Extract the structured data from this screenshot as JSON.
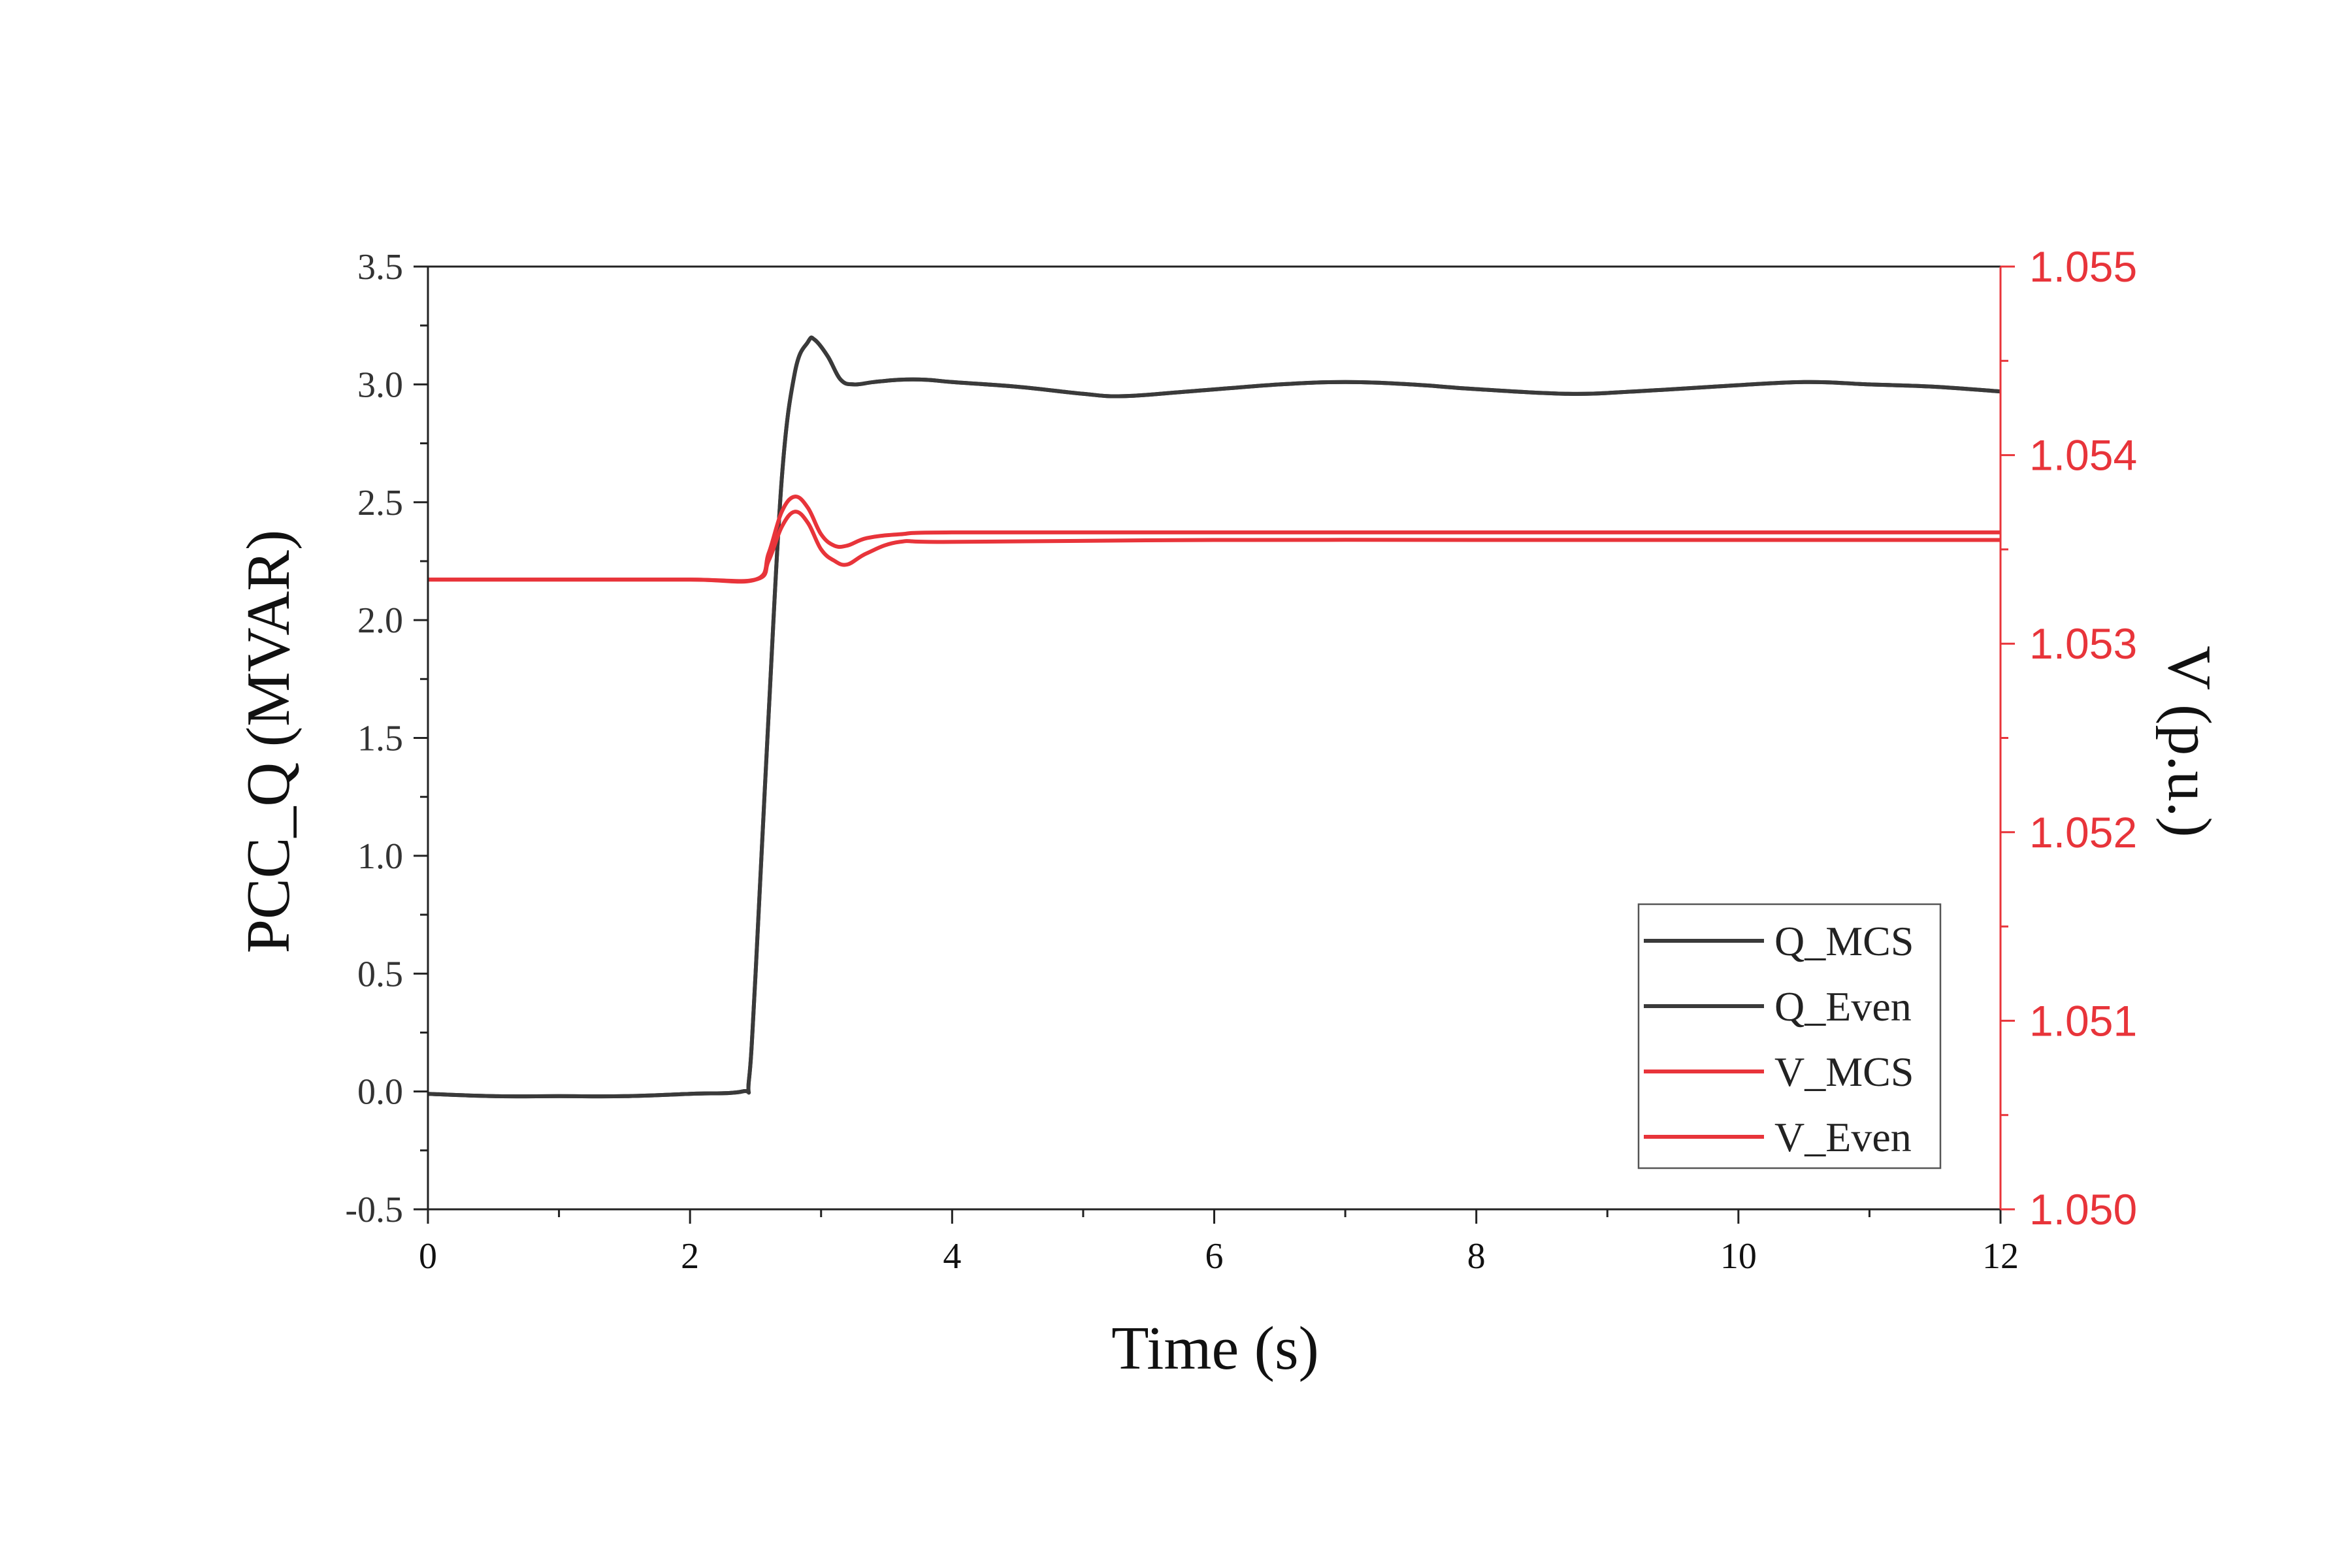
{
  "chart_data": {
    "type": "line",
    "xlabel": "Time (s)",
    "ylabel_left": "PCC_Q (MVAR)",
    "ylabel_right": "V (p.u.)",
    "xlim": [
      0,
      12
    ],
    "ylim_left": [
      -0.5,
      3.5
    ],
    "ylim_right": [
      1.05,
      1.055
    ],
    "x_ticks": [
      "0",
      "2",
      "4",
      "6",
      "8",
      "10",
      "12"
    ],
    "y_left_ticks": [
      "-0.5",
      "0.0",
      "0.5",
      "1.0",
      "1.5",
      "2.0",
      "2.5",
      "3.0",
      "3.5"
    ],
    "y_right_ticks": [
      "1.050",
      "1.051",
      "1.052",
      "1.053",
      "1.054",
      "1.055"
    ],
    "grid": false,
    "legend_position": "bottom-right",
    "colors": {
      "q": "#3a3a3a",
      "v": "#e8343a"
    },
    "series": [
      {
        "name": "Q_MCS",
        "axis": "left",
        "x": [
          0,
          0.5,
          1.0,
          1.5,
          2.0,
          2.4,
          2.45,
          2.5,
          2.6,
          2.7,
          2.8,
          2.9,
          2.95,
          3.05,
          3.15,
          3.25,
          3.4,
          3.6,
          3.8,
          4.0,
          4.5,
          5.0,
          5.3,
          5.8,
          6.5,
          7.0,
          7.5,
          8.0,
          8.7,
          9.2,
          9.8,
          10.5,
          11.0,
          11.5,
          12.0
        ],
        "y": [
          -0.01,
          -0.02,
          -0.02,
          -0.02,
          -0.01,
          0.0,
          0.05,
          0.5,
          1.6,
          2.6,
          3.05,
          3.18,
          3.19,
          3.12,
          3.02,
          3.0,
          3.01,
          3.02,
          3.02,
          3.01,
          2.99,
          2.96,
          2.95,
          2.97,
          3.0,
          3.01,
          3.0,
          2.98,
          2.96,
          2.97,
          2.99,
          3.01,
          3.0,
          2.99,
          2.97
        ]
      },
      {
        "name": "Q_Even",
        "axis": "left",
        "x": [
          0,
          0.5,
          1.0,
          1.5,
          2.0,
          2.4,
          2.45,
          2.5,
          2.6,
          2.7,
          2.8,
          2.9,
          2.95,
          3.05,
          3.15,
          3.25,
          3.4,
          3.6,
          3.8,
          4.0,
          4.5,
          5.0,
          5.3,
          5.8,
          6.5,
          7.0,
          7.5,
          8.0,
          8.7,
          9.2,
          9.8,
          10.5,
          11.0,
          11.5,
          12.0
        ],
        "y": [
          -0.01,
          -0.02,
          -0.02,
          -0.02,
          -0.01,
          0.0,
          0.05,
          0.5,
          1.6,
          2.6,
          3.05,
          3.18,
          3.19,
          3.12,
          3.02,
          3.0,
          3.01,
          3.02,
          3.02,
          3.01,
          2.99,
          2.96,
          2.95,
          2.97,
          3.0,
          3.01,
          3.0,
          2.98,
          2.96,
          2.97,
          2.99,
          3.01,
          3.0,
          2.99,
          2.97
        ]
      },
      {
        "name": "V_MCS",
        "axis": "right",
        "x": [
          0,
          1.0,
          2.0,
          2.5,
          2.6,
          2.7,
          2.8,
          2.9,
          3.0,
          3.1,
          3.2,
          3.35,
          3.6,
          4.0,
          6.0,
          8.0,
          10.0,
          12.0
        ],
        "y": [
          1.05334,
          1.05334,
          1.05334,
          1.05334,
          1.05348,
          1.0537,
          1.05378,
          1.05372,
          1.05358,
          1.05352,
          1.05352,
          1.05356,
          1.05358,
          1.05359,
          1.05359,
          1.05359,
          1.05359,
          1.05359
        ]
      },
      {
        "name": "V_Even",
        "axis": "right",
        "x": [
          0,
          1.0,
          2.0,
          2.5,
          2.6,
          2.7,
          2.8,
          2.9,
          3.0,
          3.1,
          3.2,
          3.35,
          3.6,
          4.0,
          6.0,
          8.0,
          10.0,
          12.0
        ],
        "y": [
          1.05334,
          1.05334,
          1.05334,
          1.05334,
          1.05344,
          1.05362,
          1.0537,
          1.05364,
          1.0535,
          1.05344,
          1.05342,
          1.05348,
          1.05354,
          1.05354,
          1.05355,
          1.05355,
          1.05355,
          1.05355
        ]
      }
    ]
  }
}
